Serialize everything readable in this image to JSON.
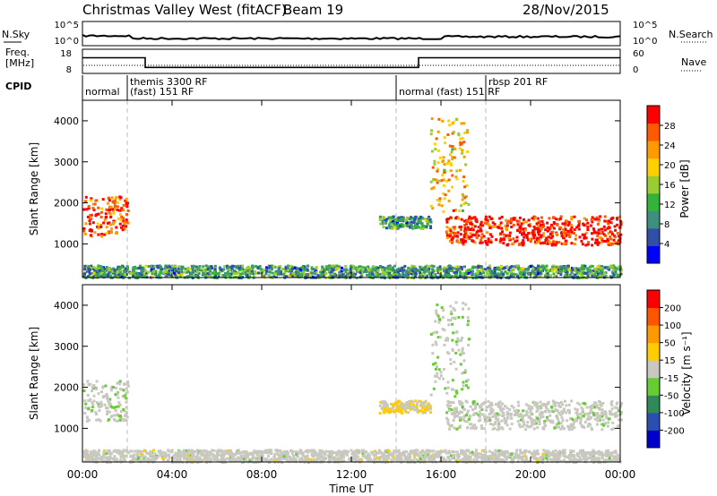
{
  "header": {
    "title": "Christmas Valley West (fitACF)",
    "beam": "Beam 19",
    "date": "28/Nov/2015"
  },
  "noise_panel": {
    "left_label": "N.Sky",
    "left_ticks": [
      "10^5",
      "10^0"
    ],
    "right_ticks": [
      "10^5",
      "10^0"
    ],
    "right_label": "N.Search"
  },
  "freq_panel": {
    "left_label_1": "Freq.",
    "left_label_2": "[MHz]",
    "left_ticks": [
      "18",
      "8"
    ],
    "right_ticks": [
      "60",
      "0"
    ],
    "right_label": "Nave"
  },
  "cpid": {
    "label": "CPID",
    "segments": [
      {
        "hour": 0.0,
        "line1": "",
        "line2": "normal"
      },
      {
        "hour": 2.0,
        "line1": "themis 3300 RF",
        "line2": "(fast) 151 RF"
      },
      {
        "hour": 14.0,
        "line1": "",
        "line2": "normal (fast) 151 RF"
      },
      {
        "hour": 18.0,
        "line1": "rbsp 201 RF",
        "line2": ""
      }
    ]
  },
  "power_panel": {
    "ylabel": "Slant Range [km]",
    "yticks": [
      "4000",
      "3000",
      "2000",
      "1000"
    ],
    "colorbar_label": "Power [dB]",
    "colorbar_ticks": [
      "28",
      "24",
      "20",
      "16",
      "12",
      "8",
      "4"
    ],
    "colors": [
      "#0000ff",
      "#2f4fa8",
      "#3f8f7f",
      "#33b33b",
      "#9acd32",
      "#ffd000",
      "#ff9a00",
      "#ff5a00",
      "#ff0000"
    ]
  },
  "velocity_panel": {
    "ylabel": "Slant Range [km]",
    "yticks": [
      "4000",
      "3000",
      "2000",
      "1000"
    ],
    "colorbar_label": "Velocity [m s⁻¹]",
    "colorbar_ticks": [
      "200",
      "100",
      "50",
      "15",
      "-15",
      "-50",
      "-100",
      "-200"
    ],
    "colors": [
      "#0000cc",
      "#2a4fb0",
      "#2e8b57",
      "#66cc33",
      "#c8c8c0",
      "#ffcc00",
      "#ff9900",
      "#ff5500",
      "#ff0000"
    ]
  },
  "xaxis": {
    "label": "Time UT",
    "ticks": [
      "00:00",
      "04:00",
      "08:00",
      "12:00",
      "16:00",
      "20:00",
      "00:00"
    ]
  },
  "chart_data": {
    "type": "heatmap",
    "xlabel": "Time UT",
    "ylabel": "Slant Range [km]",
    "xlim_hours": [
      0,
      24
    ],
    "ylim_km": [
      180,
      4500
    ],
    "frequency_mhz": [
      {
        "start_hour": 0.0,
        "end_hour": 2.8,
        "value": 14.5
      },
      {
        "start_hour": 2.8,
        "end_hour": 15.0,
        "value": 10.5
      },
      {
        "start_hour": 15.0,
        "end_hour": 24.0,
        "value": 14.5
      }
    ],
    "scatter_regions": [
      {
        "name": "near-range ground scatter",
        "start_hour": 0.0,
        "end_hour": 24.0,
        "range_km": [
          200,
          500
        ],
        "power_db": 10,
        "velocity_ms": 0
      },
      {
        "name": "early ionospheric scatter",
        "start_hour": 0.0,
        "end_hour": 2.0,
        "range_km": [
          1200,
          2200
        ],
        "power_db": 26,
        "velocity_ms": -10
      },
      {
        "name": "midday echoes",
        "start_hour": 13.2,
        "end_hour": 15.5,
        "range_km": [
          1400,
          1700
        ],
        "power_db": 10,
        "velocity_ms": 30
      },
      {
        "name": "afternoon plume",
        "start_hour": 15.5,
        "end_hour": 17.2,
        "range_km": [
          1800,
          4100
        ],
        "power_db": 20,
        "velocity_ms": -20
      },
      {
        "name": "evening band",
        "start_hour": 16.2,
        "end_hour": 24.0,
        "range_km": [
          1000,
          1700
        ],
        "power_db": 28,
        "velocity_ms": -5
      }
    ]
  }
}
